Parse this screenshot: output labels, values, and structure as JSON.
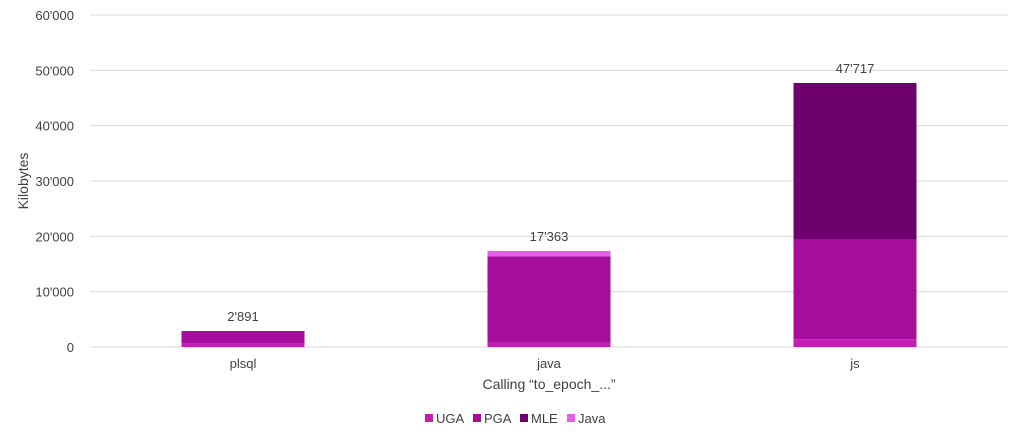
{
  "chart_data": {
    "type": "bar",
    "stacked": true,
    "title": "",
    "xlabel": "Calling “to_epoch_...”",
    "ylabel": "Kilobytes",
    "categories": [
      "plsql",
      "java",
      "js"
    ],
    "series": [
      {
        "name": "UGA",
        "color": "#c21fb2",
        "values": [
          600,
          800,
          1400
        ]
      },
      {
        "name": "PGA",
        "color": "#a60d9c",
        "values": [
          2291,
          15563,
          18000
        ]
      },
      {
        "name": "MLE",
        "color": "#6e006e",
        "values": [
          0,
          0,
          28317
        ]
      },
      {
        "name": "Java",
        "color": "#e55fe9",
        "values": [
          0,
          1000,
          0
        ]
      }
    ],
    "totals": [
      2891,
      17363,
      47717
    ],
    "total_labels": [
      "2'891",
      "17'363",
      "47'717"
    ],
    "ylim": [
      0,
      60000
    ],
    "yticks": [
      0,
      10000,
      20000,
      30000,
      40000,
      50000,
      60000
    ],
    "ytick_labels": [
      "0",
      "10'000",
      "20'000",
      "30'000",
      "40'000",
      "50'000",
      "60'000"
    ],
    "grid": true,
    "legend_position": "bottom"
  }
}
